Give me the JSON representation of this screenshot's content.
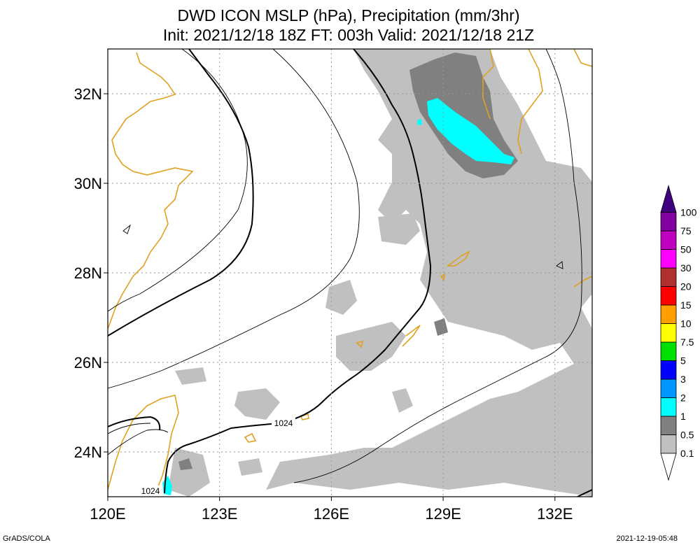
{
  "chart_data": {
    "type": "map",
    "title": "DWD ICON MSLP (hPa), Precipitation (mm/3hr)",
    "subtitle": "Init: 2021/12/18 18Z  FT: 003h  Valid: 2021/12/18 21Z",
    "lon_range": [
      120,
      133
    ],
    "lat_range": [
      23,
      33
    ],
    "x_ticks": [
      "120E",
      "123E",
      "126E",
      "129E",
      "132E"
    ],
    "x_tick_values": [
      120,
      123,
      126,
      129,
      132
    ],
    "y_ticks": [
      "24N",
      "26N",
      "28N",
      "30N",
      "32N"
    ],
    "y_tick_values": [
      24,
      26,
      28,
      30,
      32
    ],
    "grid": true,
    "colorbar": {
      "labels": [
        "0.1",
        "0.5",
        "1",
        "2",
        "3",
        "5",
        "7.5",
        "10",
        "15",
        "20",
        "30",
        "50",
        "75",
        "100"
      ],
      "colors": [
        "#ffffff",
        "#c0c0c0",
        "#808080",
        "#00ffff",
        "#0096ff",
        "#0000ff",
        "#00e000",
        "#ffff00",
        "#ffa000",
        "#ff0000",
        "#b03030",
        "#ff00ff",
        "#c000c0",
        "#8000a0",
        "#400080"
      ]
    },
    "contour_labels": [
      {
        "text": "1024",
        "lon": 124.9,
        "lat": 24.6
      },
      {
        "text": "1024",
        "lon": 121.0,
        "lat": 23.2
      }
    ],
    "precip_areas": [
      {
        "name": "northern-band",
        "lon": [
          128.0,
          131.0
        ],
        "lat": [
          29.8,
          33.0
        ],
        "level": "1-2"
      },
      {
        "name": "east-china-sea",
        "lon": [
          126.5,
          133.0
        ],
        "lat": [
          23.0,
          30.0
        ],
        "level": "0.1-0.5"
      },
      {
        "name": "taiwan-tip",
        "lon": [
          121.3,
          121.6
        ],
        "lat": [
          23.1,
          23.5
        ],
        "level": "1-2"
      }
    ]
  },
  "footer": {
    "left": "GrADS/COLA",
    "right": "2021-12-19-05:48"
  }
}
